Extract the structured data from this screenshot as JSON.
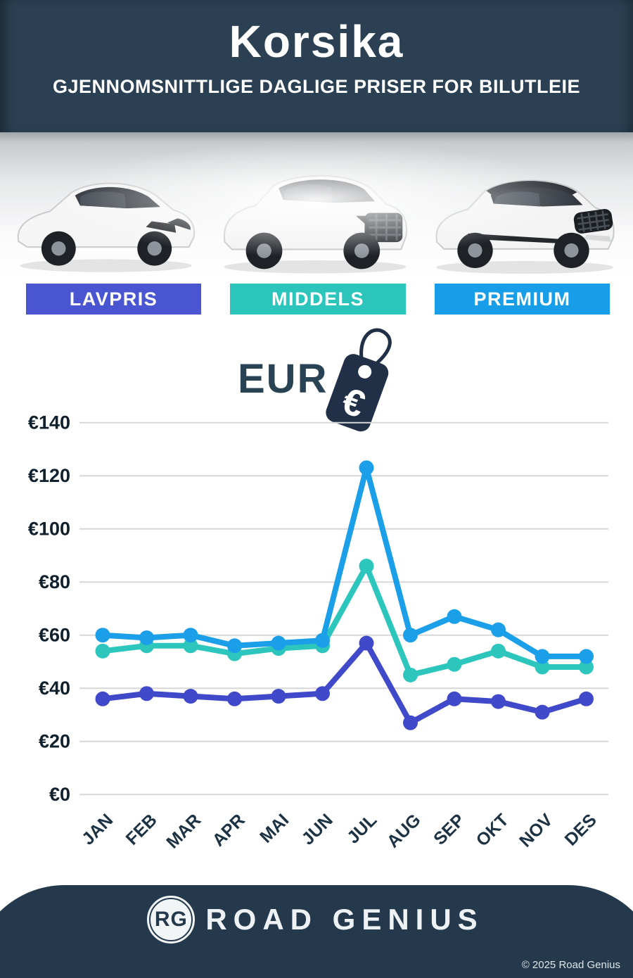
{
  "header": {
    "title": "Korsika",
    "subtitle": "GJENNOMSNITTLIGE DAGLIGE PRISER FOR BILUTLEIE",
    "background_color": "#2b4153"
  },
  "categories": [
    {
      "label": "LAVPRIS",
      "color": "#4a55d2"
    },
    {
      "label": "MIDDELS",
      "color": "#2bc5bc"
    },
    {
      "label": "PREMIUM",
      "color": "#189ee8"
    }
  ],
  "currency": {
    "label": "EUR",
    "tag_symbol": "€"
  },
  "chart_data": {
    "type": "line",
    "categories": [
      "JAN",
      "FEB",
      "MAR",
      "APR",
      "MAI",
      "JUN",
      "JUL",
      "AUG",
      "SEP",
      "OKT",
      "NOV",
      "DES"
    ],
    "series": [
      {
        "name": "LAVPRIS",
        "color": "#4049c9",
        "values": [
          36,
          38,
          37,
          36,
          37,
          38,
          57,
          27,
          36,
          35,
          31,
          36
        ]
      },
      {
        "name": "MIDDELS",
        "color": "#2cc6bd",
        "values": [
          54,
          56,
          56,
          53,
          55,
          56,
          86,
          45,
          49,
          54,
          48,
          48
        ]
      },
      {
        "name": "PREMIUM",
        "color": "#1a9fe8",
        "values": [
          60,
          59,
          60,
          56,
          57,
          58,
          123,
          60,
          67,
          62,
          52,
          52
        ]
      }
    ],
    "ylabel_prefix": "€",
    "yticks": [
      0,
      20,
      40,
      60,
      80,
      100,
      120,
      140
    ],
    "ylim": [
      0,
      150
    ],
    "grid": true,
    "legend_position": "none",
    "gridline_color": "#d7d7d7",
    "tick_label_color": "#10202c"
  },
  "footer": {
    "logo_initials": "RG",
    "brand": "ROAD GENIUS",
    "copyright": "© 2025 Road Genius",
    "background_color": "#243a4c"
  }
}
